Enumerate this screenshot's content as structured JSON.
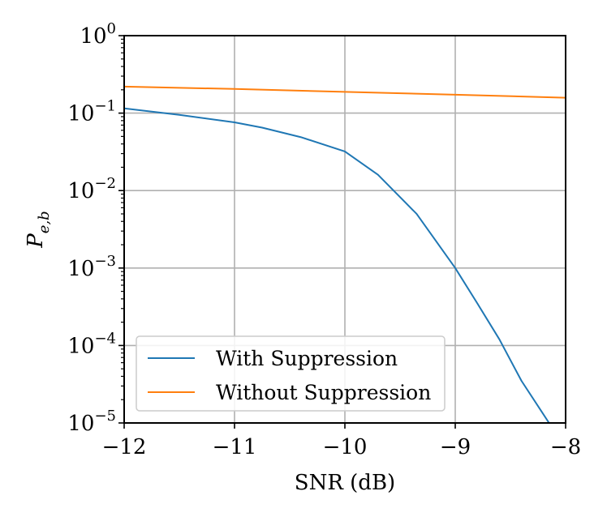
{
  "chart_data": {
    "type": "line",
    "title": "",
    "xlabel": "SNR (dB)",
    "ylabel": "P_{e,b}",
    "ylabel_parts": {
      "base": "P",
      "sub": "e,b"
    },
    "xscale": "linear",
    "yscale": "log",
    "xlim": [
      -12,
      -8
    ],
    "ylim": [
      1e-05,
      1
    ],
    "x_ticks": [
      -12,
      -11,
      -10,
      -9,
      -8
    ],
    "x_tick_labels": [
      "−12",
      "−11",
      "−10",
      "−9",
      "−8"
    ],
    "y_ticks": [
      1e-05,
      0.0001,
      0.001,
      0.01,
      0.1,
      1
    ],
    "y_tick_labels": [
      {
        "base": "10",
        "exp": "−5"
      },
      {
        "base": "10",
        "exp": "−4"
      },
      {
        "base": "10",
        "exp": "−3"
      },
      {
        "base": "10",
        "exp": "−2"
      },
      {
        "base": "10",
        "exp": "−1"
      },
      {
        "base": "10",
        "exp": "0"
      }
    ],
    "grid": true,
    "legend_position": "lower-left",
    "series": [
      {
        "name": "With Suppression",
        "color": "#1f77b4",
        "x": [
          -12,
          -11.5,
          -11.0,
          -10.75,
          -10.4,
          -10.0,
          -9.7,
          -9.35,
          -9.0,
          -8.8,
          -8.6,
          -8.4,
          -8.15
        ],
        "y": [
          0.115,
          0.095,
          0.076,
          0.065,
          0.049,
          0.032,
          0.016,
          0.005,
          0.001,
          0.00035,
          0.00012,
          3.5e-05,
          1e-05
        ]
      },
      {
        "name": "Without Suppression",
        "color": "#ff7f0e",
        "x": [
          -12,
          -11,
          -10,
          -9,
          -8
        ],
        "y": [
          0.22,
          0.205,
          0.188,
          0.173,
          0.158
        ]
      }
    ]
  }
}
